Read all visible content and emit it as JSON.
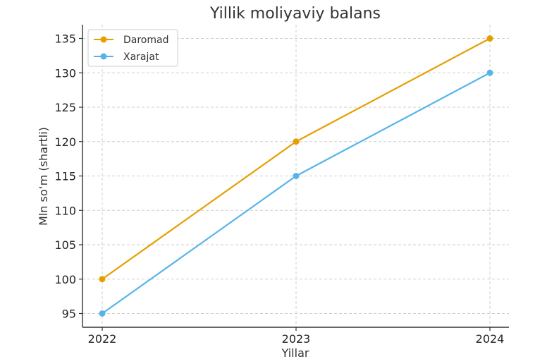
{
  "chart_data": {
    "type": "line",
    "title": "Yillik moliyaviy balans",
    "xlabel": "Yillar",
    "ylabel": "Mln so‘m (shartli)",
    "categories": [
      "2022",
      "2023",
      "2024"
    ],
    "series": [
      {
        "name": "Daromad",
        "color": "#E69F00",
        "values": [
          100,
          120,
          135
        ]
      },
      {
        "name": "Xarajat",
        "color": "#56B4E9",
        "values": [
          95,
          115,
          130
        ]
      }
    ],
    "ylim": [
      93.0,
      137.0
    ],
    "yticks": [
      95,
      100,
      105,
      110,
      115,
      120,
      125,
      130,
      135
    ],
    "grid": true,
    "legend_position": "top-left"
  }
}
